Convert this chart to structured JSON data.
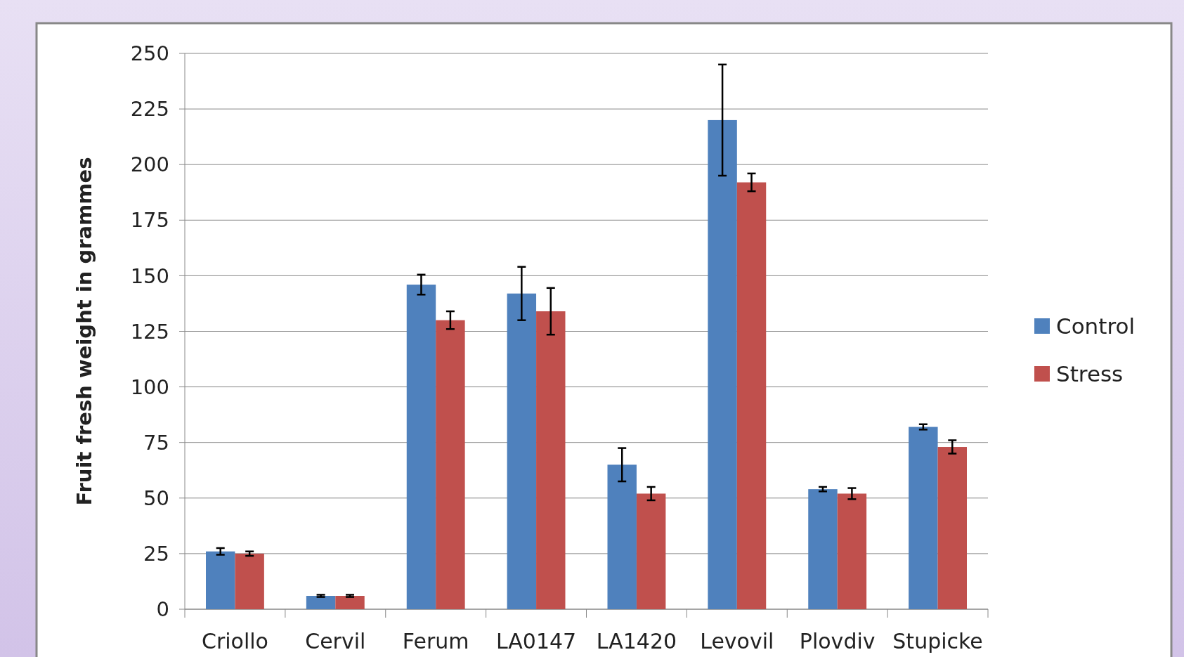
{
  "chart_data": {
    "type": "bar",
    "ylabel": "Fruit fresh weight in grammes",
    "categories": [
      "Criollo",
      "Cervil",
      "Ferum",
      "LA0147",
      "LA1420",
      "Levovil",
      "Plovdiv",
      "Stupicke"
    ],
    "series": [
      {
        "name": "Control",
        "color": "#4f81bd",
        "values": [
          26,
          6,
          146,
          142,
          65,
          220,
          54,
          82
        ],
        "errors": [
          1.5,
          0.5,
          4.5,
          12,
          7.5,
          25,
          1,
          1.2
        ]
      },
      {
        "name": "Stress",
        "color": "#c0504d",
        "values": [
          25,
          6,
          130,
          134,
          52,
          192,
          52,
          73
        ],
        "errors": [
          1,
          0.5,
          4,
          10.5,
          3,
          4,
          2.5,
          3
        ]
      }
    ],
    "ylim": [
      0,
      250
    ],
    "yticks": [
      0,
      25,
      50,
      75,
      100,
      125,
      150,
      175,
      200,
      225,
      250
    ],
    "grid": "y",
    "legend": "right"
  }
}
